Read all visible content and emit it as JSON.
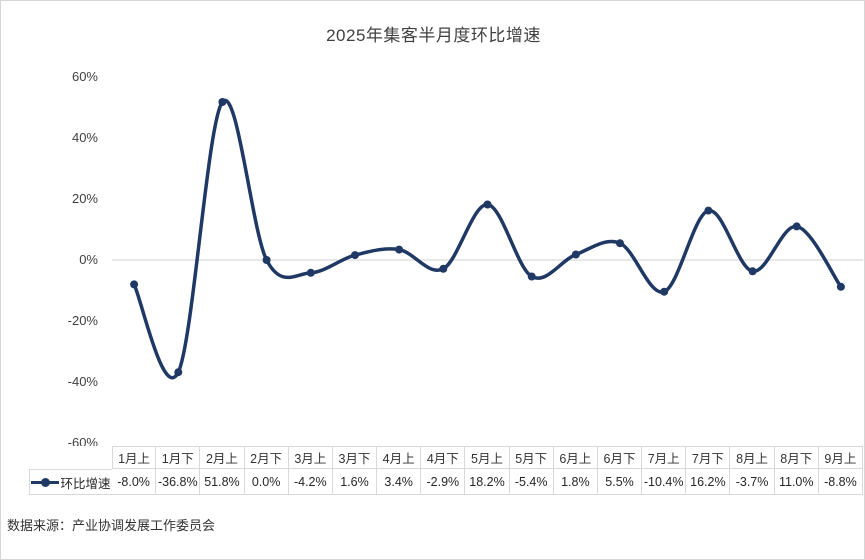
{
  "title": "2025年集客半月度环比增速",
  "source_note": "数据来源：产业协调发展工作委员会",
  "colors": {
    "line": "#1f3864",
    "marker": "#1f3864",
    "zero_gridline": "#d9d9d9",
    "table_border": "#d9d9d9",
    "text": "#404040"
  },
  "y_axis": {
    "ticks": [
      {
        "label": "60%",
        "value": 60
      },
      {
        "label": "40%",
        "value": 40
      },
      {
        "label": "20%",
        "value": 20
      },
      {
        "label": "0%",
        "value": 0
      },
      {
        "label": "-20%",
        "value": -20
      },
      {
        "label": "-40%",
        "value": -40
      },
      {
        "label": "-60%",
        "value": -60
      }
    ]
  },
  "chart_data": {
    "type": "line",
    "smooth": true,
    "title": "2025年集客半月度环比增速",
    "xlabel": "",
    "ylabel": "",
    "ylim": [
      -60,
      60
    ],
    "grid": "zero-line-only",
    "legend_position": "data-table-left",
    "categories": [
      "1月上",
      "1月下",
      "2月上",
      "2月下",
      "3月上",
      "3月下",
      "4月上",
      "4月下",
      "5月上",
      "5月下",
      "6月上",
      "6月下",
      "7月上",
      "7月下",
      "8月上",
      "8月下",
      "9月上"
    ],
    "series": [
      {
        "name": "环比增速",
        "values": [
          -8.0,
          -36.8,
          51.8,
          0.0,
          -4.2,
          1.6,
          3.4,
          -2.9,
          18.2,
          -5.4,
          1.8,
          5.5,
          -10.4,
          16.2,
          -3.7,
          11.0,
          -8.8
        ],
        "value_labels": [
          "-8.0%",
          "-36.8%",
          "51.8%",
          "0.0%",
          "-4.2%",
          "1.6%",
          "3.4%",
          "-2.9%",
          "18.2%",
          "-5.4%",
          "1.8%",
          "5.5%",
          "-10.4%",
          "16.2%",
          "-3.7%",
          "11.0%",
          "-8.8%"
        ]
      }
    ]
  }
}
